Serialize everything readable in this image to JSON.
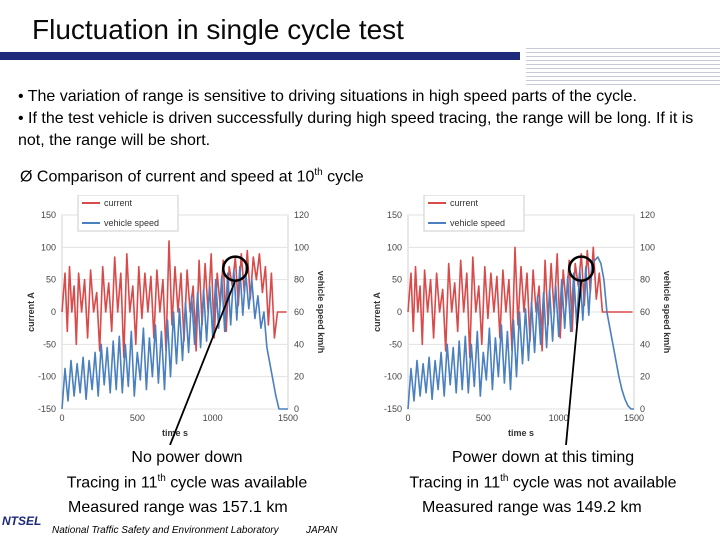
{
  "slide": {
    "title": "Fluctuation in single cycle test",
    "bullet1": "• The variation of range is sensitive to driving situations in high speed parts of the cycle.",
    "bullet2": "• If the test vehicle is driven successfully during high speed tracing, the range will be long. If it is not, the range will be short.",
    "compare_prefix": "Ø  Comparison of current and speed at 10",
    "compare_sup": "th",
    "compare_suffix": " cycle"
  },
  "captions": {
    "left_line1": "No power down",
    "left_line2_prefix": "Tracing in 11",
    "left_line2_sup": "th",
    "left_line2_suffix": " cycle  was available",
    "right_line1": "Power down at this timing",
    "right_line2_prefix": "Tracing in 11",
    "right_line2_sup": "th",
    "right_line2_suffix": " cycle was not available",
    "left_range": "Measured range was 157.1 km",
    "right_range": "Measured range was 149.2 km"
  },
  "footer": {
    "logo": "NTSEL",
    "org": "National Traffic Safety and Environment Laboratory",
    "country": "JAPAN"
  },
  "colors": {
    "current": "#d94a4a",
    "speed": "#4a7fc0",
    "navy": "#1f2a7a"
  },
  "chart_data": [
    {
      "type": "line",
      "name": "left-chart",
      "xlabel": "time s",
      "ylabel": "current A",
      "y2label": "vehicle speed km/h",
      "xlim": [
        0,
        1500
      ],
      "ylim": [
        -150,
        150
      ],
      "y2lim": [
        0,
        120
      ],
      "xticks": [
        0,
        500,
        1000,
        1500
      ],
      "yticks": [
        -150,
        -100,
        -50,
        0,
        50,
        100,
        150
      ],
      "y2ticks": [
        0,
        20,
        40,
        60,
        80,
        100,
        120
      ],
      "legend": [
        "current",
        "vehicle speed"
      ],
      "annotation": "circle at high speed section",
      "series": [
        {
          "name": "current",
          "axis": "left",
          "x": [
            0,
            20,
            35,
            50,
            65,
            80,
            95,
            110,
            130,
            150,
            170,
            190,
            210,
            230,
            250,
            270,
            290,
            310,
            330,
            350,
            370,
            390,
            410,
            430,
            450,
            470,
            490,
            510,
            530,
            550,
            570,
            590,
            610,
            630,
            650,
            670,
            690,
            710,
            730,
            750,
            770,
            790,
            810,
            830,
            850,
            870,
            890,
            910,
            930,
            950,
            970,
            990,
            1010,
            1030,
            1050,
            1070,
            1090,
            1110,
            1130,
            1150,
            1170,
            1190,
            1210,
            1230,
            1250,
            1270,
            1290,
            1310,
            1330,
            1350,
            1370,
            1390,
            1410,
            1430,
            1450,
            1470,
            1490
          ],
          "y": [
            0,
            60,
            -30,
            70,
            0,
            40,
            -50,
            60,
            0,
            50,
            -40,
            65,
            0,
            30,
            -60,
            70,
            0,
            45,
            -30,
            85,
            0,
            60,
            -70,
            90,
            0,
            40,
            -50,
            70,
            -10,
            60,
            0,
            55,
            -40,
            65,
            0,
            50,
            -60,
            110,
            -20,
            70,
            0,
            60,
            -45,
            65,
            0,
            40,
            -60,
            80,
            -20,
            75,
            0,
            90,
            -40,
            60,
            10,
            80,
            -30,
            70,
            40,
            85,
            10,
            90,
            30,
            95,
            20,
            85,
            50,
            90,
            30,
            70,
            -20,
            60,
            -40,
            0,
            0,
            0,
            0
          ]
        },
        {
          "name": "vehicle speed",
          "axis": "right",
          "x": [
            0,
            20,
            40,
            60,
            80,
            100,
            120,
            140,
            160,
            180,
            200,
            220,
            240,
            260,
            280,
            300,
            320,
            340,
            360,
            380,
            400,
            420,
            440,
            460,
            480,
            500,
            520,
            540,
            560,
            580,
            600,
            620,
            640,
            660,
            680,
            700,
            720,
            740,
            760,
            780,
            800,
            820,
            840,
            860,
            880,
            900,
            920,
            940,
            960,
            980,
            1000,
            1020,
            1040,
            1060,
            1080,
            1100,
            1120,
            1140,
            1160,
            1180,
            1200,
            1220,
            1240,
            1260,
            1280,
            1300,
            1320,
            1340,
            1360,
            1380,
            1400,
            1420,
            1440,
            1460,
            1480,
            1500
          ],
          "y": [
            0,
            25,
            5,
            30,
            8,
            28,
            10,
            32,
            6,
            30,
            12,
            35,
            8,
            40,
            15,
            38,
            10,
            42,
            12,
            45,
            10,
            40,
            14,
            48,
            8,
            35,
            18,
            50,
            12,
            44,
            20,
            52,
            16,
            48,
            12,
            55,
            20,
            60,
            28,
            62,
            30,
            66,
            35,
            70,
            40,
            72,
            38,
            74,
            42,
            76,
            45,
            80,
            50,
            82,
            48,
            84,
            52,
            86,
            55,
            88,
            58,
            84,
            62,
            80,
            56,
            70,
            50,
            60,
            38,
            28,
            18,
            8,
            0,
            0,
            0,
            0
          ]
        }
      ]
    },
    {
      "type": "line",
      "name": "right-chart",
      "xlabel": "time s",
      "ylabel": "current A",
      "y2label": "vehicle speed km/h",
      "xlim": [
        0,
        1500
      ],
      "ylim": [
        -150,
        150
      ],
      "y2lim": [
        0,
        120
      ],
      "xticks": [
        0,
        500,
        1000,
        1500
      ],
      "yticks": [
        -150,
        -100,
        -50,
        0,
        50,
        100,
        150
      ],
      "y2ticks": [
        0,
        20,
        40,
        60,
        80,
        100,
        120
      ],
      "legend": [
        "current",
        "vehicle speed"
      ],
      "annotation": "circle at power down timing",
      "series": [
        {
          "name": "current",
          "axis": "left",
          "x": [
            0,
            20,
            35,
            50,
            65,
            80,
            95,
            110,
            130,
            150,
            170,
            190,
            210,
            230,
            250,
            270,
            290,
            310,
            330,
            350,
            370,
            390,
            410,
            430,
            450,
            470,
            490,
            510,
            530,
            550,
            570,
            590,
            610,
            630,
            650,
            670,
            690,
            710,
            730,
            750,
            770,
            790,
            810,
            830,
            850,
            870,
            890,
            910,
            930,
            950,
            970,
            990,
            1010,
            1030,
            1050,
            1070,
            1090,
            1110,
            1130,
            1150,
            1170,
            1190,
            1210,
            1230,
            1250,
            1270,
            1290,
            1310,
            1330,
            1350,
            1370,
            1390,
            1410,
            1430,
            1450,
            1470,
            1490
          ],
          "y": [
            0,
            60,
            -30,
            70,
            0,
            40,
            -50,
            65,
            0,
            50,
            -40,
            60,
            0,
            35,
            -60,
            75,
            0,
            45,
            -30,
            80,
            0,
            60,
            -70,
            85,
            0,
            40,
            -50,
            70,
            -10,
            60,
            0,
            55,
            -40,
            65,
            0,
            50,
            -60,
            100,
            -20,
            70,
            0,
            60,
            -45,
            65,
            0,
            40,
            -60,
            80,
            -20,
            75,
            0,
            90,
            -40,
            65,
            10,
            80,
            -30,
            75,
            40,
            90,
            10,
            95,
            30,
            100,
            20,
            60,
            0,
            0,
            0,
            0,
            0,
            0,
            0,
            0,
            0,
            0,
            0
          ]
        },
        {
          "name": "vehicle speed",
          "axis": "right",
          "x": [
            0,
            20,
            40,
            60,
            80,
            100,
            120,
            140,
            160,
            180,
            200,
            220,
            240,
            260,
            280,
            300,
            320,
            340,
            360,
            380,
            400,
            420,
            440,
            460,
            480,
            500,
            520,
            540,
            560,
            580,
            600,
            620,
            640,
            660,
            680,
            700,
            720,
            740,
            760,
            780,
            800,
            820,
            840,
            860,
            880,
            900,
            920,
            940,
            960,
            980,
            1000,
            1020,
            1040,
            1060,
            1080,
            1100,
            1120,
            1140,
            1160,
            1180,
            1200,
            1220,
            1240,
            1260,
            1280,
            1300,
            1320,
            1340,
            1360,
            1380,
            1400,
            1420,
            1440,
            1460,
            1480,
            1500
          ],
          "y": [
            0,
            25,
            5,
            30,
            8,
            28,
            10,
            32,
            6,
            30,
            12,
            35,
            8,
            40,
            15,
            38,
            10,
            42,
            12,
            45,
            10,
            40,
            14,
            48,
            8,
            35,
            18,
            50,
            12,
            44,
            20,
            52,
            16,
            48,
            12,
            55,
            20,
            60,
            28,
            62,
            30,
            66,
            35,
            70,
            40,
            72,
            38,
            74,
            42,
            76,
            45,
            80,
            50,
            82,
            48,
            84,
            52,
            86,
            55,
            88,
            58,
            90,
            92,
            94,
            90,
            80,
            60,
            50,
            40,
            30,
            20,
            12,
            6,
            2,
            0,
            0
          ]
        }
      ]
    }
  ]
}
